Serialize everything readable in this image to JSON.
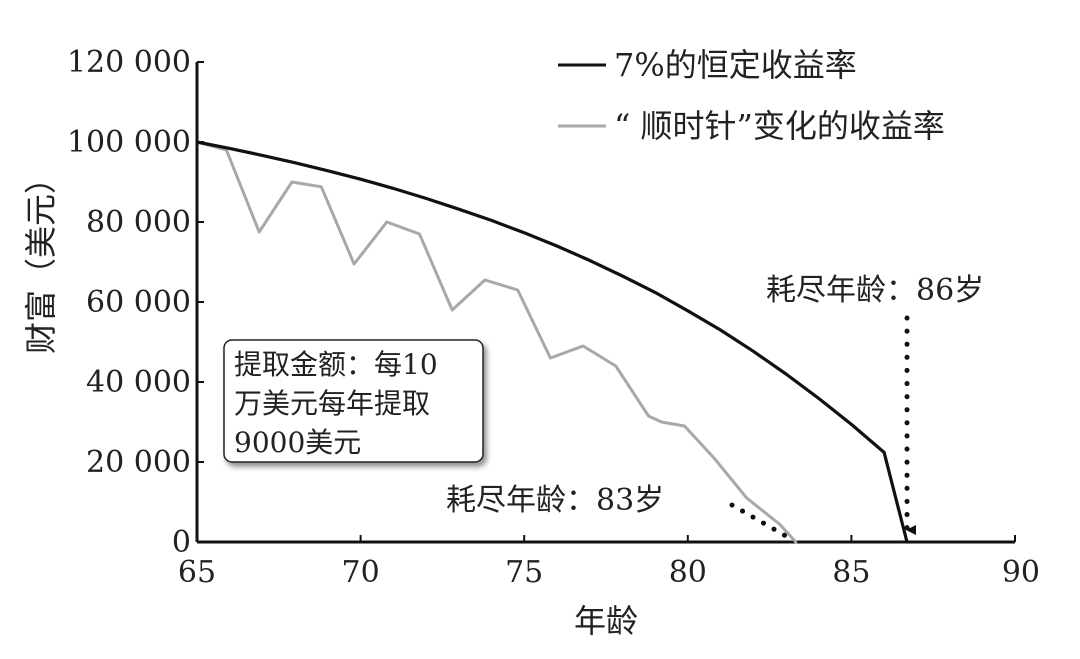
{
  "chart_data": {
    "type": "line",
    "title": "",
    "xlabel": "年龄",
    "ylabel": "财富（美元）",
    "xlim": [
      65,
      90
    ],
    "ylim": [
      0,
      120000
    ],
    "x_ticks": [
      65,
      70,
      75,
      80,
      85,
      90
    ],
    "x_tick_labels": [
      "65",
      "70",
      "75",
      "80",
      "85",
      "90"
    ],
    "y_ticks": [
      0,
      20000,
      40000,
      60000,
      80000,
      100000,
      120000
    ],
    "y_tick_labels": [
      "0",
      "20 000",
      "40 000",
      "60 000",
      "80 000",
      "100 000",
      "120 000"
    ],
    "grid": false,
    "legend_position": "top-right",
    "series": [
      {
        "name": "7%的恒定收益率",
        "color": "#111111",
        "x": [
          65,
          66,
          67,
          68,
          69,
          70,
          71,
          72,
          73,
          74,
          75,
          76,
          77,
          78,
          79,
          80,
          81,
          82,
          83,
          84,
          85,
          86,
          86.7
        ],
        "y": [
          100000,
          98400,
          96660,
          94800,
          92800,
          90700,
          88400,
          85900,
          83200,
          80400,
          77300,
          74000,
          70400,
          66500,
          62400,
          57800,
          53000,
          47700,
          42000,
          35900,
          29400,
          22400,
          0
        ]
      },
      {
        "name": "“ 顺时针”变化的收益率",
        "color": "#a8a8a8",
        "x": [
          65,
          65.9,
          66.9,
          67.9,
          68.8,
          69.8,
          70.8,
          71.8,
          72.8,
          73.8,
          74.8,
          75.8,
          76.8,
          77.8,
          78.8,
          79.2,
          79.9,
          80.8,
          81.8,
          82.8,
          83.3
        ],
        "y": [
          100000,
          98000,
          77500,
          90000,
          88800,
          69500,
          80000,
          77000,
          58000,
          65500,
          63000,
          46000,
          49000,
          44000,
          31500,
          30000,
          29000,
          21000,
          11000,
          4500,
          0
        ]
      }
    ],
    "annotations": [
      {
        "text": "耗尽年龄：86岁",
        "target_x": 86.7,
        "target_y": 0
      },
      {
        "text": "耗尽年龄：83岁",
        "target_x": 83.3,
        "target_y": 0
      }
    ],
    "note": {
      "lines": [
        "提取金额：每10",
        "万美元每年提取",
        "9000美元"
      ]
    }
  }
}
